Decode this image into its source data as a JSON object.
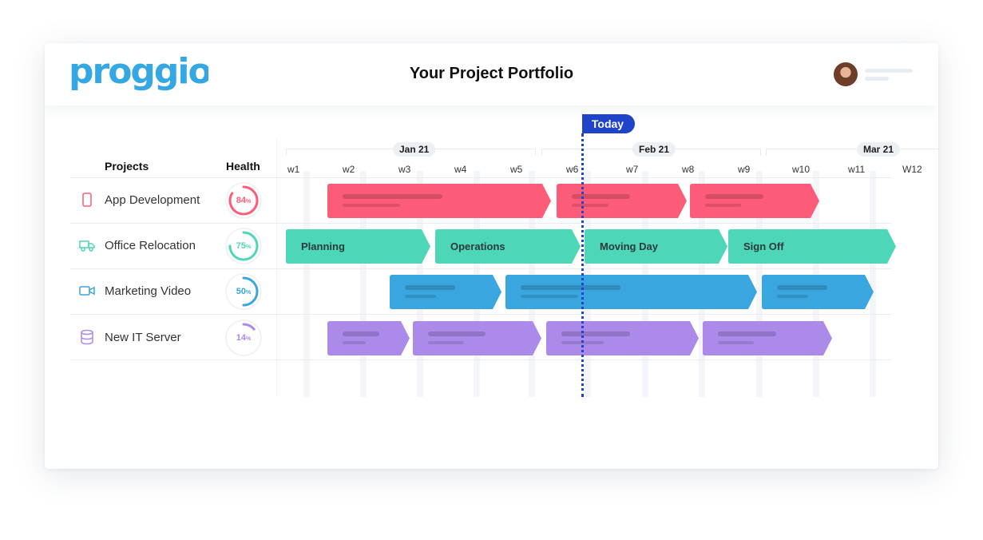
{
  "app": {
    "logo_text": "proggio",
    "title": "Your Project Portfolio"
  },
  "columns": {
    "projects": "Projects",
    "health": "Health"
  },
  "months": [
    "Jan 21",
    "Feb 21",
    "Mar 21"
  ],
  "weeks": [
    "w1",
    "w2",
    "w3",
    "w4",
    "w5",
    "w6",
    "w7",
    "w8",
    "w9",
    "w10",
    "w11",
    "W12"
  ],
  "today_label": "Today",
  "colors": {
    "red": "#fd5c79",
    "green": "#4ed6b8",
    "blue": "#3aa6e0",
    "purple": "#ac8aea",
    "today": "#1f43c9",
    "logo": "#35a7e2"
  },
  "projects": [
    {
      "name": "App Development",
      "icon": "mobile-phone-icon",
      "health": 84,
      "health_pct": "84",
      "color": "#fd5c79",
      "bar_labels": []
    },
    {
      "name": "Office Relocation",
      "icon": "truck-icon",
      "health": 75,
      "health_pct": "75",
      "color": "#4ed6b8",
      "bar_labels": [
        "Planning",
        "Operations",
        "Moving Day",
        "Sign Off"
      ]
    },
    {
      "name": "Marketing Video",
      "icon": "video-camera-icon",
      "health": 50,
      "health_pct": "50",
      "color": "#3aa6e0",
      "bar_labels": []
    },
    {
      "name": "New IT Server",
      "icon": "database-icon",
      "health": 14,
      "health_pct": "14",
      "color": "#ac8aea",
      "bar_labels": []
    }
  ],
  "percent_sign": "%"
}
